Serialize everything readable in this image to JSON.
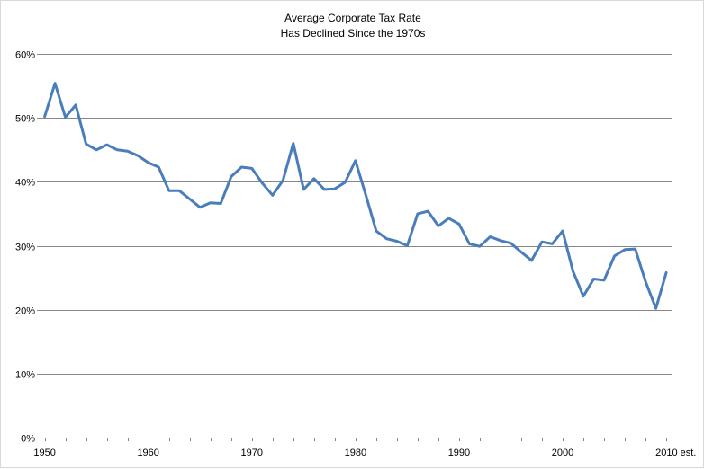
{
  "chart_data": {
    "type": "line",
    "title": [
      "Average Corporate Tax Rate",
      "Has Declined Since the 1970s"
    ],
    "xlabel": "",
    "ylabel": "",
    "xlim": [
      1950,
      2010
    ],
    "ylim": [
      0,
      60
    ],
    "y_ticks": [
      0,
      10,
      20,
      30,
      40,
      50,
      60
    ],
    "y_tick_labels": [
      "0%",
      "10%",
      "20%",
      "30%",
      "40%",
      "50%",
      "60%"
    ],
    "x_ticks": [
      1950,
      1960,
      1970,
      1980,
      1990,
      2000,
      2010
    ],
    "x_tick_labels": [
      "1950",
      "1960",
      "1970",
      "1980",
      "1990",
      "2000",
      "2010 est."
    ],
    "grid": "horizontal",
    "legend": "none",
    "series_color": "#4a7ebb",
    "series": [
      {
        "x": [
          1950,
          1951,
          1952,
          1953,
          1954,
          1955,
          1956,
          1957,
          1958,
          1959,
          1960,
          1961,
          1962,
          1963,
          1964,
          1965,
          1966,
          1967,
          1968,
          1969,
          1970,
          1971,
          1972,
          1973,
          1974,
          1975,
          1976,
          1977,
          1978,
          1979,
          1980,
          1981,
          1982,
          1983,
          1984,
          1985,
          1986,
          1987,
          1988,
          1989,
          1990,
          1991,
          1992,
          1993,
          1994,
          1995,
          1996,
          1997,
          1998,
          1999,
          2000,
          2001,
          2002,
          2003,
          2004,
          2005,
          2006,
          2007,
          2008,
          2009,
          2010
        ],
        "values": [
          50.2,
          55.4,
          50.1,
          52.0,
          45.9,
          45.0,
          45.8,
          45.0,
          44.8,
          44.1,
          43.0,
          42.3,
          38.6,
          38.6,
          37.3,
          36.0,
          36.7,
          36.6,
          40.8,
          42.3,
          42.1,
          39.8,
          37.9,
          40.2,
          46.0,
          38.8,
          40.5,
          38.8,
          38.9,
          39.9,
          43.3,
          37.9,
          32.3,
          31.1,
          30.7,
          30.0,
          35.0,
          35.4,
          33.1,
          34.3,
          33.4,
          30.3,
          29.9,
          31.4,
          30.8,
          30.4,
          29.0,
          27.7,
          30.6,
          30.3,
          32.3,
          26.0,
          22.1,
          24.8,
          24.6,
          28.4,
          29.4,
          29.5,
          24.4,
          20.2,
          25.8
        ]
      }
    ]
  }
}
